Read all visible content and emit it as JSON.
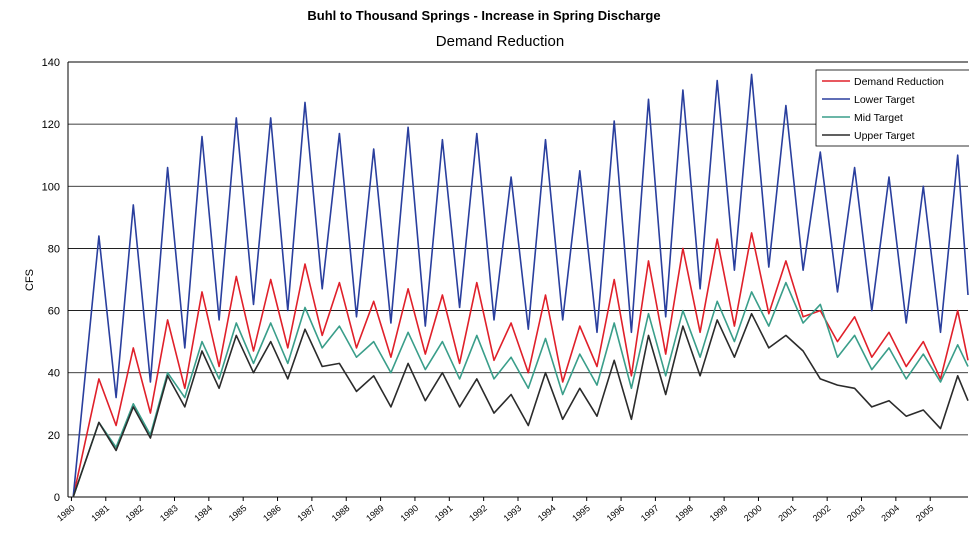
{
  "chart_data": {
    "type": "line",
    "title": "Buhl to Thousand Springs - Increase in Spring Discharge",
    "subtitle": "Demand Reduction",
    "y_label": "CFS",
    "x": [
      1980.05,
      1980.8,
      1981.3,
      1981.8,
      1982.3,
      1982.8,
      1983.3,
      1983.8,
      1984.3,
      1984.8,
      1985.3,
      1985.8,
      1986.3,
      1986.8,
      1987.3,
      1987.8,
      1988.3,
      1988.8,
      1989.3,
      1989.8,
      1990.3,
      1990.8,
      1991.3,
      1991.8,
      1992.3,
      1992.8,
      1993.3,
      1993.8,
      1994.3,
      1994.8,
      1995.3,
      1995.8,
      1996.3,
      1996.8,
      1997.3,
      1997.8,
      1998.3,
      1998.8,
      1999.3,
      1999.8,
      2000.3,
      2000.8,
      2001.3,
      2001.8,
      2002.3,
      2002.8,
      2003.3,
      2003.8,
      2004.3,
      2004.8,
      2005.3,
      2005.8,
      2006.1
    ],
    "series": [
      {
        "name": "Demand Reduction",
        "color": "#e0202a",
        "values": [
          0,
          38,
          23,
          48,
          27,
          57,
          35,
          66,
          42,
          71,
          47,
          70,
          48,
          75,
          52,
          69,
          48,
          63,
          45,
          67,
          46,
          65,
          43,
          69,
          44,
          56,
          40,
          65,
          37,
          55,
          42,
          70,
          39,
          76,
          46,
          80,
          53,
          83,
          55,
          85,
          59,
          76,
          58,
          60,
          50,
          58,
          45,
          53,
          42,
          50,
          38,
          60,
          44
        ]
      },
      {
        "name": "Lower Target",
        "color": "#2a3f9e",
        "values": [
          0,
          84,
          32,
          94,
          37,
          106,
          48,
          116,
          57,
          122,
          62,
          122,
          60,
          127,
          67,
          117,
          58,
          112,
          56,
          119,
          55,
          115,
          61,
          117,
          57,
          103,
          54,
          115,
          57,
          105,
          53,
          121,
          53,
          128,
          58,
          131,
          67,
          134,
          73,
          136,
          74,
          126,
          73,
          111,
          66,
          106,
          60,
          103,
          56,
          100,
          53,
          110,
          65
        ]
      },
      {
        "name": "Mid Target",
        "color": "#3a9e8a",
        "values": [
          0,
          24,
          16,
          30,
          20,
          40,
          32,
          50,
          38,
          56,
          43,
          56,
          43,
          61,
          48,
          55,
          45,
          50,
          40,
          53,
          41,
          50,
          38,
          52,
          38,
          45,
          35,
          51,
          33,
          46,
          36,
          56,
          35,
          59,
          39,
          60,
          45,
          63,
          50,
          66,
          55,
          69,
          56,
          62,
          45,
          52,
          41,
          48,
          38,
          46,
          37,
          49,
          42
        ]
      },
      {
        "name": "Upper Target",
        "color": "#2b2b2b",
        "values": [
          0,
          24,
          15,
          29,
          19,
          39,
          29,
          47,
          35,
          52,
          40,
          50,
          38,
          54,
          42,
          43,
          34,
          39,
          29,
          43,
          31,
          40,
          29,
          38,
          27,
          33,
          23,
          40,
          25,
          35,
          26,
          44,
          25,
          52,
          33,
          55,
          39,
          57,
          45,
          59,
          48,
          52,
          47,
          38,
          36,
          35,
          29,
          31,
          26,
          28,
          22,
          39,
          31
        ]
      }
    ],
    "xlim": [
      1979.9,
      2006.1
    ],
    "xticks": [
      1980,
      1981,
      1982,
      1983,
      1984,
      1985,
      1986,
      1987,
      1988,
      1989,
      1990,
      1991,
      1992,
      1993,
      1994,
      1995,
      1996,
      1997,
      1998,
      1999,
      2000,
      2001,
      2002,
      2003,
      2004,
      2005
    ],
    "ylim": [
      0,
      140
    ],
    "yticks": [
      0,
      20,
      40,
      60,
      80,
      100,
      120,
      140
    ],
    "grid": true,
    "legend": "top-right"
  }
}
